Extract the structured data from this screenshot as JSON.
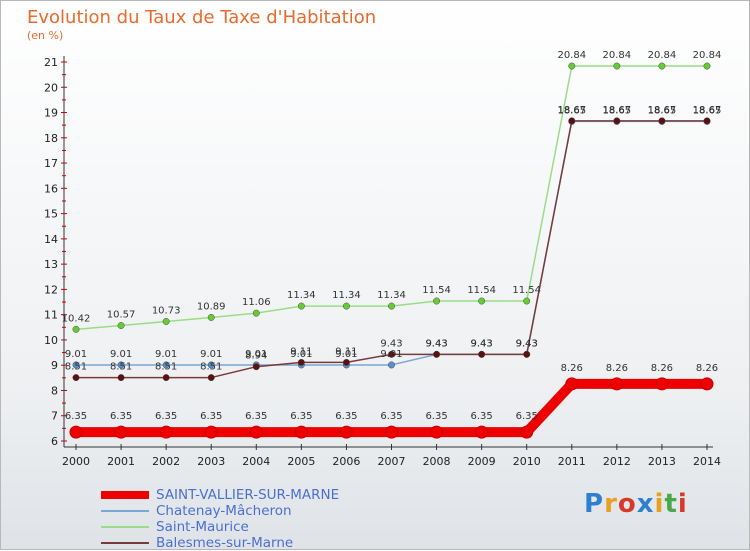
{
  "chart_data": {
    "type": "line",
    "title": "Evolution du Taux de Taxe d'Habitation",
    "ylabel": "(en %)",
    "x": [
      "2000",
      "2001",
      "2002",
      "2003",
      "2004",
      "2005",
      "2006",
      "2007",
      "2008",
      "2009",
      "2010",
      "2011",
      "2012",
      "2013",
      "2014"
    ],
    "ylim": [
      6,
      21
    ],
    "yticks": [
      "6",
      "7",
      "8",
      "9",
      "10",
      "11",
      "12",
      "13",
      "14",
      "15",
      "16",
      "17",
      "18",
      "19",
      "20",
      "21"
    ],
    "grid": false,
    "legend_position": "bottom-left",
    "series": [
      {
        "name": "SAINT-VALLIER-SUR-MARNE",
        "color": "#ee0000",
        "marker": "#ee0000",
        "values": [
          6.35,
          6.35,
          6.35,
          6.35,
          6.35,
          6.35,
          6.35,
          6.35,
          6.35,
          6.35,
          6.35,
          8.26,
          8.26,
          8.26,
          8.26
        ],
        "labels": [
          "6.35",
          "6.35",
          "6.35",
          "6.35",
          "6.35",
          "6.35",
          "6.35",
          "6.35",
          "6.35",
          "6.35",
          "6.35",
          "8.26",
          "8.26",
          "8.26",
          "8.26"
        ]
      },
      {
        "name": "Chatenay-Mâcheron",
        "color": "#7aa6d8",
        "marker": "#5a8fcf",
        "values": [
          9.01,
          9.01,
          9.01,
          9.01,
          9.01,
          9.01,
          9.01,
          9.01,
          9.43,
          9.43,
          9.43,
          18.65,
          18.65,
          18.65,
          18.65
        ],
        "labels": [
          "9.01",
          "9.01",
          "9.01",
          "9.01",
          "9.01",
          "9.01",
          "9.01",
          "9.01",
          "9.43",
          "9.43",
          "9.43",
          "18.65",
          "18.65",
          "18.65",
          "18.65"
        ]
      },
      {
        "name": "Saint-Maurice",
        "color": "#99dd88",
        "marker": "#66cc33",
        "values": [
          10.42,
          10.57,
          10.73,
          10.89,
          11.06,
          11.34,
          11.34,
          11.34,
          11.54,
          11.54,
          11.54,
          20.84,
          20.84,
          20.84,
          20.84
        ],
        "labels": [
          "10.42",
          "10.57",
          "10.73",
          "10.89",
          "11.06",
          "11.34",
          "11.34",
          "11.34",
          "11.54",
          "11.54",
          "11.54",
          "20.84",
          "20.84",
          "20.84",
          "20.84"
        ]
      },
      {
        "name": "Balesmes-sur-Marne",
        "color": "#7a3a3a",
        "marker": "#5c1010",
        "values": [
          8.51,
          8.51,
          8.51,
          8.51,
          8.94,
          9.11,
          9.11,
          9.43,
          9.43,
          9.43,
          9.43,
          18.67,
          18.67,
          18.67,
          18.67
        ],
        "labels": [
          "8.51",
          "8.51",
          "8.51",
          "8.51",
          "8.94",
          "9.11",
          "9.11",
          "9.43",
          "9.43",
          "9.43",
          "9.43",
          "18.67",
          "18.67",
          "18.67",
          "18.67"
        ]
      }
    ]
  },
  "logo": {
    "text": "Proxiti",
    "colors": [
      "#2f7fcf",
      "#e8a020",
      "#d63a2c",
      "#2f7fcf",
      "#e8a020",
      "#4aa84a",
      "#d63a2c"
    ]
  }
}
